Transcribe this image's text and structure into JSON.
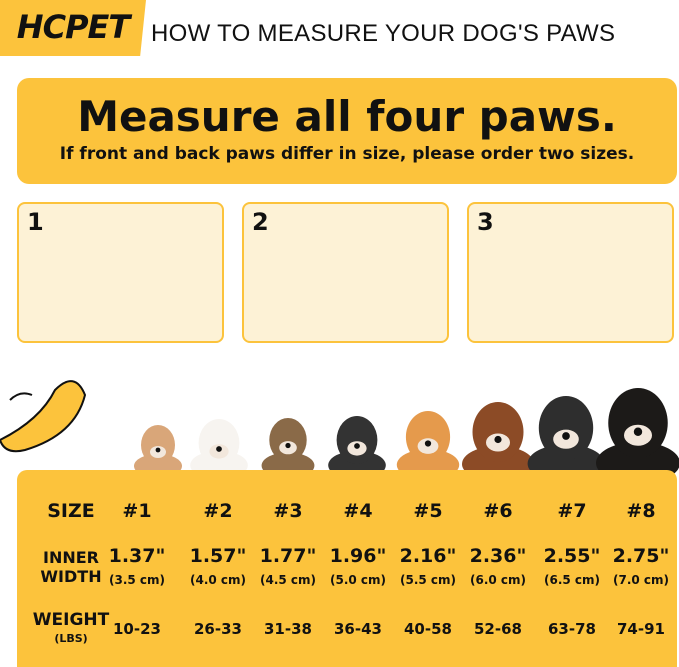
{
  "header": {
    "brand": "HCPET",
    "title": "HOW TO MEASURE YOUR DOG'S PAWS"
  },
  "banner": {
    "title": "Measure all four paws.",
    "subtitle": "If front and back paws differ in size, please order two sizes."
  },
  "steps": [
    "1",
    "2",
    "3"
  ],
  "table": {
    "labels": {
      "size": "SIZE",
      "width": [
        "INNER",
        "WIDTH"
      ],
      "weight": "WEIGHT",
      "weight_unit": "(LBS)"
    },
    "columns": [
      {
        "size": "#1",
        "inches": "1.37\"",
        "cm": "(3.5 cm)",
        "weight": "10-23"
      },
      {
        "size": "#2",
        "inches": "1.57\"",
        "cm": "(4.0 cm)",
        "weight": "26-33"
      },
      {
        "size": "#3",
        "inches": "1.77\"",
        "cm": "(4.5 cm)",
        "weight": "31-38"
      },
      {
        "size": "#4",
        "inches": "1.96\"",
        "cm": "(5.0 cm)",
        "weight": "36-43"
      },
      {
        "size": "#5",
        "inches": "2.16\"",
        "cm": "(5.5 cm)",
        "weight": "40-58"
      },
      {
        "size": "#6",
        "inches": "2.36\"",
        "cm": "(6.0 cm)",
        "weight": "52-68"
      },
      {
        "size": "#7",
        "inches": "2.55\"",
        "cm": "(6.5 cm)",
        "weight": "63-78"
      },
      {
        "size": "#8",
        "inches": "2.75\"",
        "cm": "(7.0 cm)",
        "weight": "74-91"
      }
    ]
  }
}
